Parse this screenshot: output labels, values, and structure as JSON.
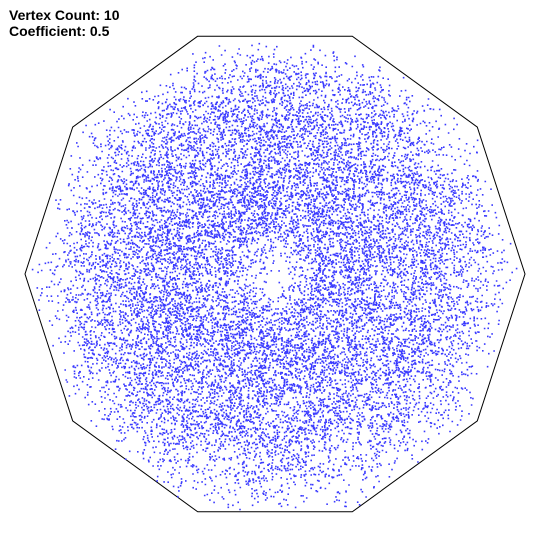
{
  "info": {
    "vertex_count_label": "Vertex Count: 10",
    "coefficient_label": "Coefficient: 0.5"
  },
  "fractal": {
    "vertex_count": 10,
    "coefficient": 0.5,
    "point_color": "#3a3aff",
    "polygon_color": "#000000",
    "background": "#ffffff"
  }
}
